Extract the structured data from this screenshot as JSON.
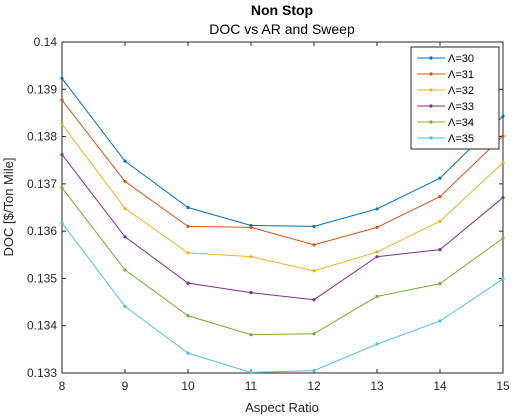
{
  "chart_data": {
    "type": "line",
    "title": "Non Stop",
    "subtitle": "DOC vs AR and Sweep",
    "xlabel": "Aspect Ratio",
    "ylabel": "DOC [$/Ton Mile]",
    "xlim": [
      8,
      15
    ],
    "ylim": [
      0.133,
      0.14
    ],
    "x_ticks": [
      "8",
      "9",
      "10",
      "11",
      "12",
      "13",
      "14",
      "15"
    ],
    "y_ticks": [
      "0.133",
      "0.134",
      "0.135",
      "0.136",
      "0.137",
      "0.138",
      "0.139",
      "0.14"
    ],
    "grid": false,
    "legend_position": "top-right",
    "x": [
      8,
      9,
      10,
      11,
      12,
      13,
      14,
      15
    ],
    "series": [
      {
        "name": "Λ=30",
        "color": "#0072BD",
        "values": [
          0.13923,
          0.13748,
          0.1365,
          0.13612,
          0.1361,
          0.13647,
          0.13712,
          0.13843
        ]
      },
      {
        "name": "Λ=31",
        "color": "#D95319",
        "values": [
          0.13877,
          0.13705,
          0.1361,
          0.13608,
          0.13571,
          0.13608,
          0.13673,
          0.13801
        ]
      },
      {
        "name": "Λ=32",
        "color": "#EDB120",
        "values": [
          0.13826,
          0.13648,
          0.13554,
          0.13546,
          0.13516,
          0.13556,
          0.13621,
          0.13745
        ]
      },
      {
        "name": "Λ=33",
        "color": "#7E2F8E",
        "values": [
          0.13762,
          0.13588,
          0.1349,
          0.1347,
          0.13455,
          0.13546,
          0.13561,
          0.13671
        ]
      },
      {
        "name": "Λ=34",
        "color": "#77AC30",
        "values": [
          0.13692,
          0.13518,
          0.13421,
          0.13381,
          0.13383,
          0.13462,
          0.13489,
          0.13585
        ]
      },
      {
        "name": "Λ=35",
        "color": "#4DBEEE",
        "values": [
          0.13617,
          0.13441,
          0.13342,
          0.13301,
          0.13305,
          0.13361,
          0.1341,
          0.13499
        ]
      }
    ]
  }
}
